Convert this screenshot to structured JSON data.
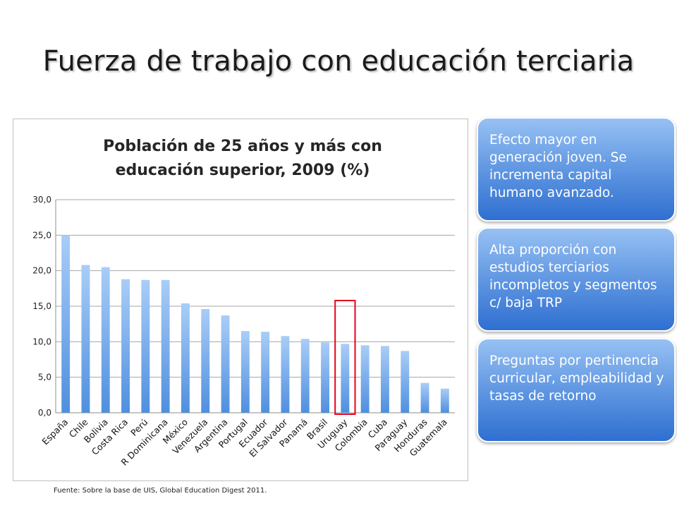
{
  "slide": {
    "title": "Fuerza de trabajo con educación terciaria",
    "source": "Fuente: Sobre la base de UIS, Global Education Digest 2011."
  },
  "callouts": [
    "Efecto mayor en generación joven. Se incrementa capital humano avanzado.",
    "Alta proporción con estudios terciarios incompletos y segmentos c/ baja TRP",
    "Preguntas por pertinencia curricular, empleabilidad y tasas de retorno"
  ],
  "colors": {
    "bar_top": "#a9cdf7",
    "bar_bottom": "#4f8fdf",
    "highlight_box": "#e8001c",
    "callout_fill": "#5b93e0"
  },
  "chart_data": {
    "type": "bar",
    "title": "Población de 25 años y más con educación superior, 2009 (%)",
    "title_lines": [
      "Población de 25 años y más con",
      "educación superior, 2009 (%)"
    ],
    "categories": [
      "España",
      "Chile",
      "Bolivia",
      "Costa Rica",
      "Perú",
      "R Dominicana",
      "México",
      "Venezuela",
      "Argentina",
      "Portugal",
      "Ecuador",
      "El Salvador",
      "Panamá",
      "Brasil",
      "Uruguay",
      "Colombia",
      "Cuba",
      "Paraguay",
      "Honduras",
      "Guatemala"
    ],
    "values": [
      25.0,
      20.8,
      20.5,
      18.8,
      18.7,
      18.7,
      15.4,
      14.6,
      13.7,
      11.5,
      11.4,
      10.8,
      10.4,
      9.9,
      9.7,
      9.5,
      9.4,
      8.7,
      4.2,
      3.4
    ],
    "yticks": [
      "0,0",
      "5,0",
      "10,0",
      "15,0",
      "20,0",
      "25,0",
      "30,0"
    ],
    "ylim": [
      0,
      30
    ],
    "grid": true,
    "highlighted_category": "Uruguay",
    "xlabel": "",
    "ylabel": ""
  }
}
